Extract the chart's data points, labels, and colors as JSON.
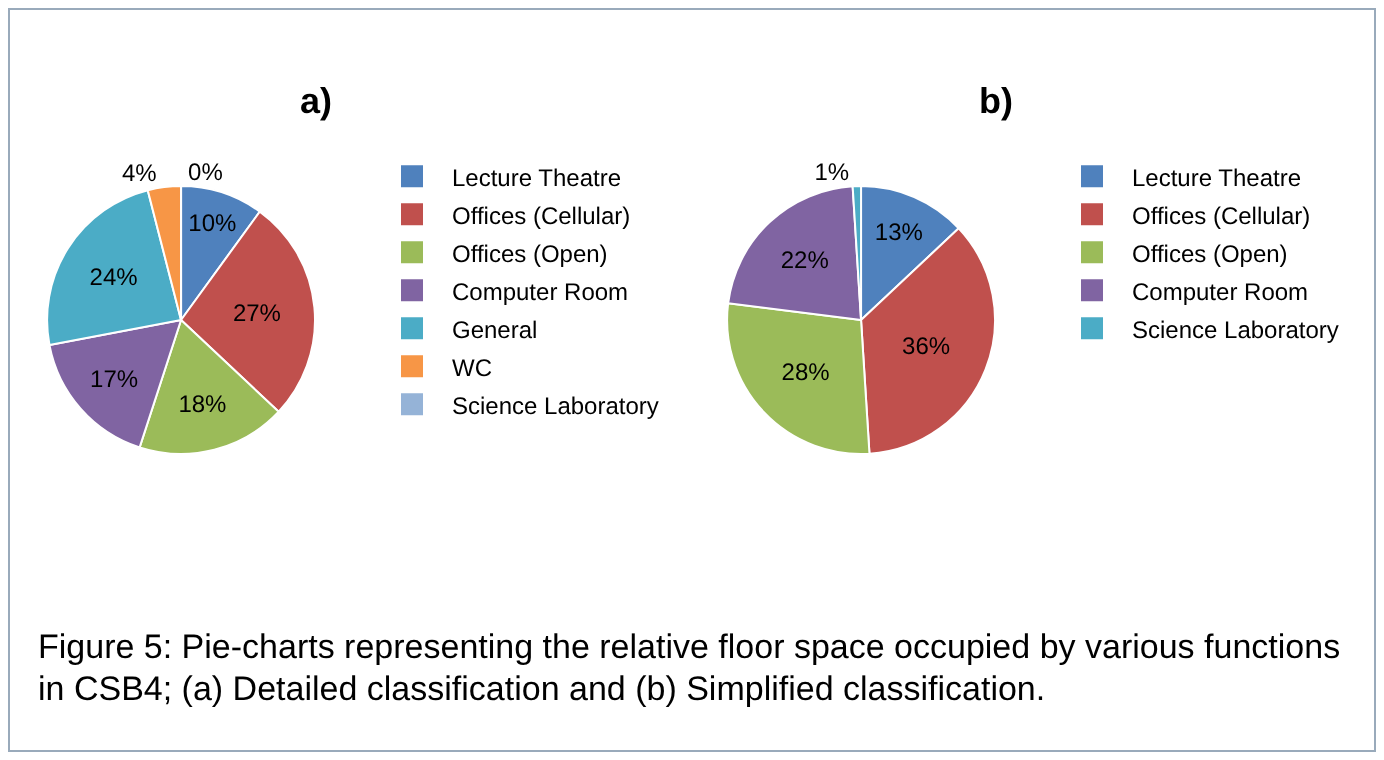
{
  "chart_data": [
    {
      "type": "pie",
      "title": "a)",
      "categories": [
        "Lecture Theatre",
        "Offices (Cellular)",
        "Offices (Open)",
        "Computer Room",
        "General",
        "WC",
        "Science Laboratory"
      ],
      "values": [
        10,
        27,
        18,
        17,
        24,
        4,
        0
      ],
      "colors": [
        "#4f81bd",
        "#c0504d",
        "#9bbb59",
        "#8064a2",
        "#4bacc6",
        "#f79646",
        "#95b3d7"
      ],
      "value_labels": [
        "10%",
        "27%",
        "18%",
        "17%",
        "24%",
        "4%",
        "0%"
      ],
      "legend": "right",
      "annotations": [
        "Figure 5: Pie-charts representing the relative floor space occupied by various functions in CSB4; (a) Detailed classification and (b) Simplified classification."
      ]
    },
    {
      "type": "pie",
      "title": "b)",
      "categories": [
        "Lecture Theatre",
        "Offices (Cellular)",
        "Offices (Open)",
        "Computer Room",
        "Science Laboratory"
      ],
      "values": [
        13,
        36,
        28,
        22,
        1
      ],
      "colors": [
        "#4f81bd",
        "#c0504d",
        "#9bbb59",
        "#8064a2",
        "#4bacc6"
      ],
      "value_labels": [
        "13%",
        "36%",
        "28%",
        "22%",
        "1%"
      ],
      "legend": "right"
    }
  ]
}
